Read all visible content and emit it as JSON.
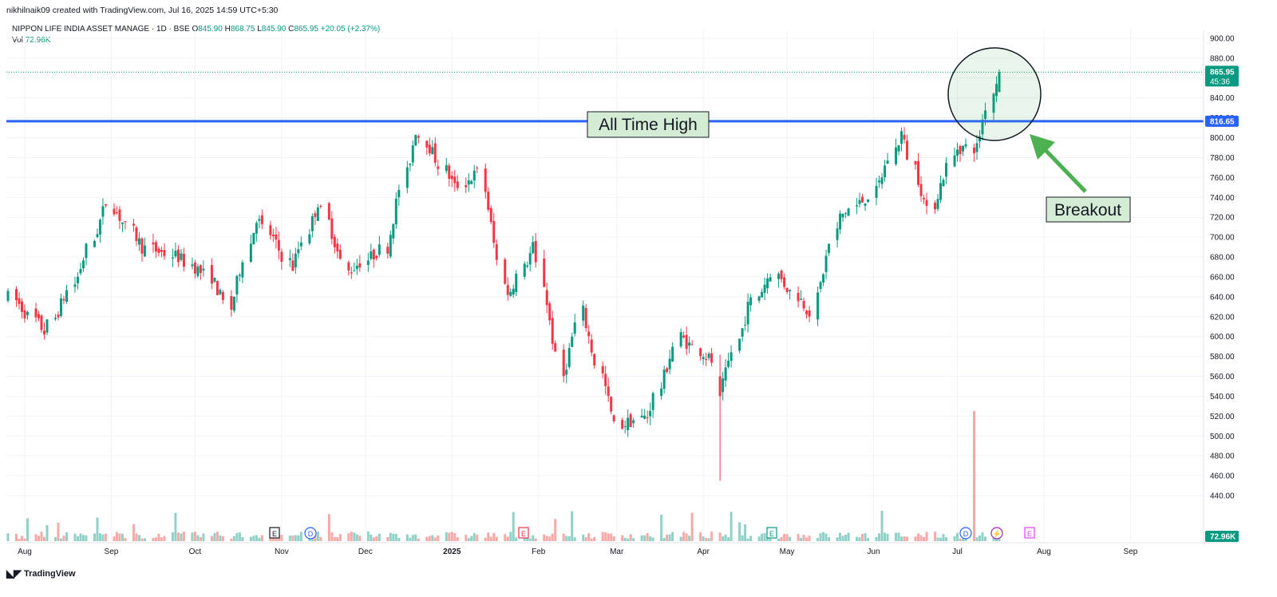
{
  "header": {
    "attribution": "nikhilnaik09 created with TradingView.com, Jul 16, 2025 14:59 UTC+5:30",
    "symbol": "NIPPON LIFE INDIA ASSET MANAGE · 1D · BSE",
    "ohlc": {
      "o_label": "O",
      "o": "845.90",
      "h_label": "H",
      "h": "868.75",
      "l_label": "L",
      "l": "845.90",
      "c_label": "C",
      "c": "865.95",
      "change": "+20.05 (+2.37%)"
    },
    "vol_label": "Vol",
    "vol_value": "72.96K"
  },
  "footer": {
    "brand": "TradingView",
    "logo": "tradingview-logo-icon"
  },
  "colors": {
    "up": "#089981",
    "down": "#f23645",
    "up_vol": "#8fd1c6",
    "down_vol": "#f7a9a7",
    "ath_line": "#2962ff",
    "grid": "#f0f3fa",
    "axis_text": "#131722",
    "label_bg": "#d4ecd4",
    "arrow": "#4caf50"
  },
  "chart_data": {
    "type": "candlestick",
    "symbol": "NIPPON LIFE INDIA ASSET MANAGE",
    "interval": "1D",
    "exchange": "BSE",
    "y_axis": {
      "ticks": [
        440,
        460,
        480,
        500,
        520,
        540,
        560,
        580,
        600,
        620,
        640,
        660,
        680,
        700,
        720,
        740,
        760,
        780,
        800,
        820,
        840,
        860,
        880,
        900
      ],
      "tick_labels": [
        "440.00",
        "460.00",
        "480.00",
        "500.00",
        "520.00",
        "540.00",
        "560.00",
        "580.00",
        "600.00",
        "620.00",
        "640.00",
        "660.00",
        "680.00",
        "700.00",
        "720.00",
        "740.00",
        "760.00",
        "780.00",
        "800.00",
        "820.00",
        "840.00",
        "860.00",
        "880.00",
        "900.00"
      ],
      "range": [
        428,
        912
      ],
      "side": "right"
    },
    "x_axis": {
      "tick_labels": [
        "Aug",
        "Sep",
        "Oct",
        "Nov",
        "Dec",
        "2025",
        "Feb",
        "Mar",
        "Apr",
        "May",
        "Jun",
        "Jul",
        "Aug",
        "Sep"
      ]
    },
    "anchors": [
      {
        "x": "2024-07-26",
        "close": 640
      },
      {
        "x": "2024-08-08",
        "close": 605
      },
      {
        "x": "2024-08-20",
        "close": 660
      },
      {
        "x": "2024-08-30",
        "close": 735
      },
      {
        "x": "2024-09-12",
        "close": 690
      },
      {
        "x": "2024-09-25",
        "close": 680
      },
      {
        "x": "2024-10-07",
        "close": 660
      },
      {
        "x": "2024-10-14",
        "close": 628
      },
      {
        "x": "2024-10-23",
        "close": 720
      },
      {
        "x": "2024-11-05",
        "close": 670
      },
      {
        "x": "2024-11-14",
        "close": 735
      },
      {
        "x": "2024-11-25",
        "close": 665
      },
      {
        "x": "2024-12-09",
        "close": 690
      },
      {
        "x": "2024-12-19",
        "close": 808
      },
      {
        "x": "2025-01-02",
        "close": 750
      },
      {
        "x": "2025-01-10",
        "close": 765
      },
      {
        "x": "2025-01-21",
        "close": 640
      },
      {
        "x": "2025-01-30",
        "close": 690
      },
      {
        "x": "2025-02-10",
        "close": 560
      },
      {
        "x": "2025-02-17",
        "close": 625
      },
      {
        "x": "2025-02-28",
        "close": 510
      },
      {
        "x": "2025-03-12",
        "close": 520
      },
      {
        "x": "2025-03-24",
        "close": 600
      },
      {
        "x": "2025-04-04",
        "close": 575
      },
      {
        "x": "2025-04-07",
        "close": 540
      },
      {
        "x": "2025-04-17",
        "close": 630
      },
      {
        "x": "2025-04-25",
        "close": 665
      },
      {
        "x": "2025-05-09",
        "close": 625
      },
      {
        "x": "2025-05-20",
        "close": 720
      },
      {
        "x": "2025-06-02",
        "close": 745
      },
      {
        "x": "2025-06-11",
        "close": 805
      },
      {
        "x": "2025-06-20",
        "close": 725
      },
      {
        "x": "2025-07-01",
        "close": 790
      },
      {
        "x": "2025-07-08",
        "close": 790
      },
      {
        "x": "2025-07-14",
        "close": 846
      },
      {
        "x": "2025-07-16",
        "close": 866
      }
    ],
    "ohlc_last": {
      "date": "2025-07-16",
      "open": 845.9,
      "high": 868.75,
      "low": 845.9,
      "close": 865.95
    },
    "volume_last": "72.96K",
    "horizontal_line": {
      "price": 816.65,
      "label": "816.65"
    },
    "last_price_label": {
      "price": 865.95,
      "label": "865.95",
      "countdown": "45:36"
    },
    "volume_label": "72.96K",
    "annotations": [
      {
        "text": "All Time High",
        "type": "label-box"
      },
      {
        "text": "Breakout",
        "type": "label-box"
      }
    ],
    "event_markers": [
      {
        "symbol": "E",
        "color": "#131722"
      },
      {
        "symbol": "D",
        "color": "#2962ff"
      },
      {
        "symbol": "E",
        "color": "#f23645"
      },
      {
        "symbol": "E",
        "color": "#089981"
      },
      {
        "symbol": "D",
        "color": "#2962ff"
      },
      {
        "symbol": "⚡",
        "color": "#9c27b0"
      },
      {
        "symbol": "E",
        "color": "#e040fb"
      }
    ],
    "grid": true
  }
}
